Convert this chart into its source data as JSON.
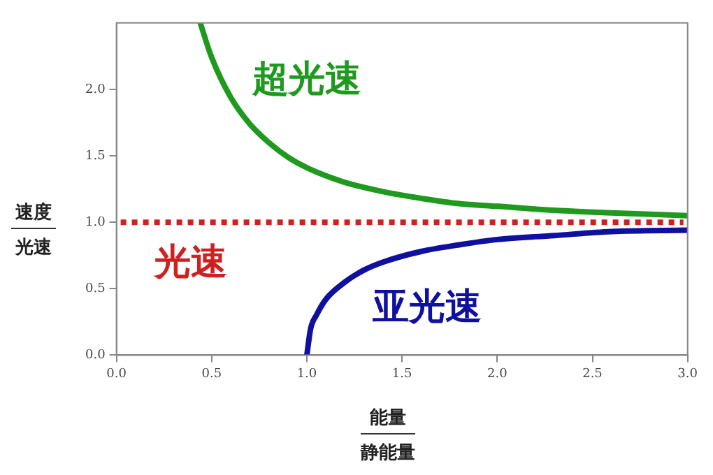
{
  "chart_data": {
    "type": "line",
    "xlabel": "能量/静能量",
    "ylabel": "速度/光速",
    "xlim": [
      0,
      3
    ],
    "xticks": [
      {
        "value": 0,
        "label": "0.0"
      },
      {
        "value": 0.5,
        "label": "0.5"
      },
      {
        "value": 1,
        "label": "1.0"
      },
      {
        "value": 1.5,
        "label": "1.5"
      },
      {
        "value": 2,
        "label": "2.0"
      },
      {
        "value": 2.5,
        "label": "2.5"
      },
      {
        "value": 3,
        "label": "3.0"
      }
    ],
    "ylim": [
      0,
      2.5
    ],
    "yticks": [
      {
        "value": 0,
        "label": "0.0"
      },
      {
        "value": 0.5,
        "label": "0.5"
      },
      {
        "value": 1,
        "label": "1.0"
      },
      {
        "value": 1.5,
        "label": "1.5"
      },
      {
        "value": 2,
        "label": "2.0"
      }
    ],
    "grid": false,
    "legend": false,
    "marker": "none",
    "series": [
      {
        "name": "超光速",
        "color": "#1f9a1f",
        "x": [
          0.44,
          0.5,
          0.6,
          0.7,
          0.8,
          0.9,
          1.0,
          1.2,
          1.4,
          1.6,
          1.8,
          2.0,
          2.3,
          2.6,
          3.0
        ],
        "values": [
          2.5,
          2.24,
          1.94,
          1.74,
          1.6,
          1.49,
          1.41,
          1.3,
          1.23,
          1.18,
          1.14,
          1.12,
          1.09,
          1.07,
          1.05
        ]
      },
      {
        "name": "亚光速",
        "color": "#1010a0",
        "x": [
          1.0,
          1.02,
          1.05,
          1.1,
          1.2,
          1.3,
          1.4,
          1.6,
          1.8,
          2.0,
          2.3,
          2.6,
          3.0
        ],
        "values": [
          0,
          0.2,
          0.3,
          0.42,
          0.55,
          0.64,
          0.7,
          0.78,
          0.83,
          0.87,
          0.9,
          0.93,
          0.94
        ]
      }
    ],
    "ref_lines": [
      {
        "axis": "y",
        "value": 1,
        "label": "光速",
        "color": "#cc2222",
        "line_style": "dotted"
      }
    ]
  }
}
